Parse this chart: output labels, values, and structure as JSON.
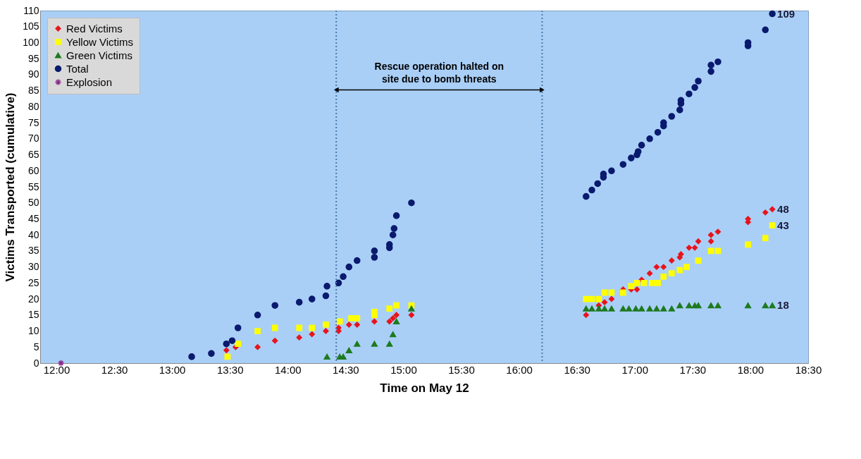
{
  "chart_data": {
    "type": "scatter",
    "xlabel": "Time on May 12",
    "ylabel": "Victims Transported (cumulative)",
    "xlim": [
      11.86,
      18.5
    ],
    "xticks": [
      {
        "value": 12,
        "label": "12:00"
      },
      {
        "value": 12.5,
        "label": "12:30"
      },
      {
        "value": 13,
        "label": "13:00"
      },
      {
        "value": 13.5,
        "label": "13:30"
      },
      {
        "value": 14,
        "label": "14:00"
      },
      {
        "value": 14.5,
        "label": "14:30"
      },
      {
        "value": 15,
        "label": "15:00"
      },
      {
        "value": 15.5,
        "label": "15:30"
      },
      {
        "value": 16,
        "label": "16:00"
      },
      {
        "value": 16.5,
        "label": "16:30"
      },
      {
        "value": 17,
        "label": "17:00"
      },
      {
        "value": 17.5,
        "label": "17:30"
      },
      {
        "value": 18,
        "label": "18:00"
      },
      {
        "value": 18.5,
        "label": "18:30"
      }
    ],
    "ylim": [
      0,
      110
    ],
    "yticks": [
      0,
      5,
      10,
      15,
      20,
      25,
      30,
      35,
      40,
      45,
      50,
      55,
      60,
      65,
      70,
      75,
      80,
      85,
      90,
      95,
      100,
      105,
      110
    ],
    "grid": false,
    "legend": "top left",
    "series": [
      {
        "name": "Red Victims",
        "color": "#e8141c",
        "marker": "diamond",
        "x": [
          13.47,
          13.55,
          13.74,
          13.89,
          14.1,
          14.21,
          14.33,
          14.44,
          14.44,
          14.53,
          14.6,
          14.75,
          14.88,
          14.91,
          14.94,
          15.07,
          16.58,
          16.69,
          16.74,
          16.8,
          16.9,
          16.97,
          17.02,
          17.06,
          17.13,
          17.19,
          17.25,
          17.32,
          17.39,
          17.4,
          17.47,
          17.52,
          17.55,
          17.66,
          17.66,
          17.72,
          17.98,
          17.98,
          18.13,
          18.19
        ],
        "values": [
          4,
          5,
          5,
          7,
          8,
          9,
          10,
          10,
          11,
          12,
          12,
          13,
          13,
          14,
          15,
          15,
          15,
          18,
          19,
          20,
          23,
          23,
          23,
          26,
          28,
          30,
          30,
          32,
          33,
          34,
          36,
          36,
          38,
          38,
          40,
          41,
          44,
          45,
          47,
          48
        ],
        "value_labels": [
          null,
          null,
          null,
          null,
          null,
          null,
          null,
          null,
          null,
          null,
          null,
          null,
          null,
          null,
          null,
          null,
          null,
          null,
          null,
          null,
          null,
          null,
          null,
          null,
          null,
          null,
          null,
          null,
          null,
          null,
          null,
          null,
          null,
          null,
          null,
          null,
          null,
          null,
          null,
          "48"
        ]
      },
      {
        "name": "Yellow Victims",
        "color": "#ffff00",
        "marker": "square",
        "x": [
          13.48,
          13.57,
          13.74,
          13.89,
          14.1,
          14.21,
          14.33,
          14.45,
          14.55,
          14.6,
          14.75,
          14.75,
          14.88,
          14.94,
          15.07,
          16.58,
          16.63,
          16.69,
          16.74,
          16.8,
          16.9,
          16.97,
          17.02,
          17.08,
          17.15,
          17.2,
          17.25,
          17.32,
          17.39,
          17.45,
          17.55,
          17.66,
          17.72,
          17.98,
          18.13,
          18.19
        ],
        "values": [
          2,
          6,
          10,
          11,
          11,
          11,
          12,
          13,
          14,
          14,
          15,
          16,
          17,
          18,
          18,
          20,
          20,
          20,
          22,
          22,
          22,
          24,
          25,
          25,
          25,
          25,
          27,
          28,
          29,
          30,
          32,
          35,
          35,
          37,
          39,
          43
        ],
        "value_labels": [
          null,
          null,
          null,
          null,
          null,
          null,
          null,
          null,
          null,
          null,
          null,
          null,
          null,
          null,
          null,
          null,
          null,
          null,
          null,
          null,
          null,
          null,
          null,
          null,
          null,
          null,
          null,
          null,
          null,
          null,
          null,
          null,
          null,
          null,
          null,
          "43"
        ]
      },
      {
        "name": "Green Victims",
        "color": "#1e7a1e",
        "marker": "triangle",
        "x": [
          14.34,
          14.45,
          14.48,
          14.53,
          14.6,
          14.75,
          14.88,
          14.91,
          14.94,
          15.07,
          16.58,
          16.63,
          16.69,
          16.74,
          16.8,
          16.9,
          16.95,
          17.01,
          17.06,
          17.13,
          17.19,
          17.25,
          17.32,
          17.39,
          17.47,
          17.52,
          17.55,
          17.66,
          17.72,
          17.98,
          18.13,
          18.19
        ],
        "values": [
          2,
          2,
          2,
          4,
          6,
          6,
          6,
          9,
          13,
          17,
          17,
          17,
          17,
          17,
          17,
          17,
          17,
          17,
          17,
          17,
          17,
          17,
          17,
          18,
          18,
          18,
          18,
          18,
          18,
          18,
          18,
          18
        ],
        "value_labels": [
          null,
          null,
          null,
          null,
          null,
          null,
          null,
          null,
          null,
          null,
          null,
          null,
          null,
          null,
          null,
          null,
          null,
          null,
          null,
          null,
          null,
          null,
          null,
          null,
          null,
          null,
          null,
          null,
          null,
          null,
          null,
          "18"
        ]
      },
      {
        "name": "Total",
        "color": "#0a1a6e",
        "marker": "circle",
        "x": [
          13.17,
          13.34,
          13.47,
          13.52,
          13.57,
          13.74,
          13.89,
          14.1,
          14.21,
          14.33,
          14.34,
          14.44,
          14.48,
          14.53,
          14.6,
          14.75,
          14.75,
          14.88,
          14.88,
          14.91,
          14.92,
          14.94,
          15.07,
          16.58,
          16.63,
          16.68,
          16.73,
          16.73,
          16.8,
          16.9,
          16.97,
          17.02,
          17.03,
          17.06,
          17.13,
          17.2,
          17.25,
          17.25,
          17.32,
          17.39,
          17.4,
          17.4,
          17.47,
          17.52,
          17.55,
          17.66,
          17.66,
          17.72,
          17.98,
          17.98,
          18.13,
          18.19
        ],
        "values": [
          2,
          3,
          6,
          7,
          11,
          15,
          18,
          19,
          20,
          21,
          24,
          25,
          27,
          30,
          32,
          33,
          35,
          36,
          37,
          40,
          42,
          46,
          50,
          52,
          54,
          56,
          58,
          59,
          60,
          62,
          64,
          65,
          66,
          68,
          70,
          72,
          74,
          75,
          77,
          79,
          81,
          82,
          84,
          86,
          88,
          91,
          93,
          94,
          99,
          100,
          104,
          109
        ],
        "value_labels": [
          null,
          null,
          null,
          null,
          null,
          null,
          null,
          null,
          null,
          null,
          null,
          null,
          null,
          null,
          null,
          null,
          null,
          null,
          null,
          null,
          null,
          null,
          null,
          null,
          null,
          null,
          null,
          null,
          null,
          null,
          null,
          null,
          null,
          null,
          null,
          null,
          null,
          null,
          null,
          null,
          null,
          null,
          null,
          null,
          null,
          null,
          null,
          null,
          null,
          null,
          null,
          "109"
        ]
      },
      {
        "name": "Explosion",
        "color": "#8b2a8b",
        "marker": "cross",
        "x": [
          12.04
        ],
        "values": [
          0
        ]
      }
    ],
    "ref_lines": [
      {
        "axis": "x",
        "value": 14.42,
        "color": "#4a7aa8",
        "line_style": "dotted"
      },
      {
        "axis": "x",
        "value": 16.2,
        "color": "#4a7aa8",
        "line_style": "dotted"
      }
    ],
    "annotations": [
      "Rescue operation halted on\nsite due to bomb threats"
    ]
  }
}
